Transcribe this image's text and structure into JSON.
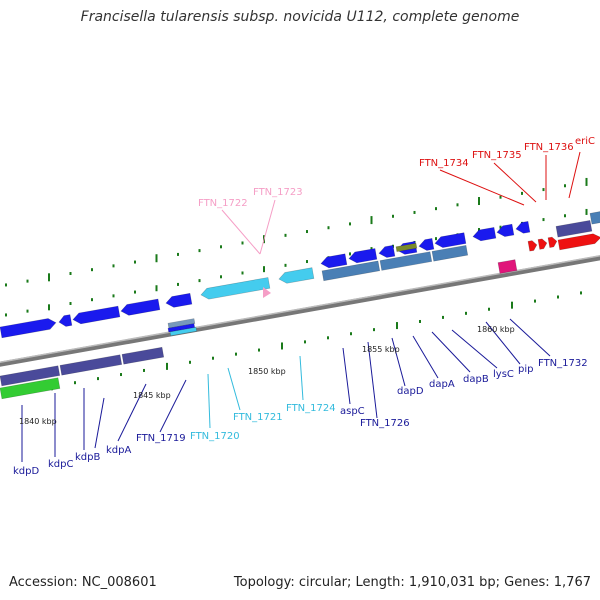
{
  "title": "Francisella tularensis subsp. novicida U112, complete genome",
  "footer": {
    "accession": "Accession: NC_008601",
    "topology": "Topology: circular; Length: 1,910,031 bp; Genes: 1,767"
  },
  "kbp_ticks": [
    "1840 kbp",
    "1845 kbp",
    "1850 kbp",
    "1855 kbp",
    "1860 kbp"
  ],
  "gene_labels": {
    "kdpD": "kdpD",
    "kdpC": "kdpC",
    "kdpB": "kdpB",
    "kdpA": "kdpA",
    "FTN_1719": "FTN_1719",
    "FTN_1720": "FTN_1720",
    "FTN_1721": "FTN_1721",
    "FTN_1722": "FTN_1722",
    "FTN_1723": "FTN_1723",
    "FTN_1724": "FTN_1724",
    "aspC": "aspC",
    "FTN_1726": "FTN_1726",
    "dapD": "dapD",
    "dapA": "dapA",
    "dapB": "dapB",
    "lysC": "lysC",
    "pip": "pip",
    "FTN_1732": "FTN_1732",
    "FTN_1734": "FTN_1734",
    "FTN_1735": "FTN_1735",
    "FTN_1736": "FTN_1736",
    "eriC": "eriC"
  },
  "colors": {
    "blue_gene": "#1a1aee",
    "light_blue_gene": "#44ccee",
    "pink_gene": "#f59ec6",
    "red_gene": "#ee1111",
    "navy_label": "#1a1a99",
    "green_tick": "#1a7a1a"
  }
}
